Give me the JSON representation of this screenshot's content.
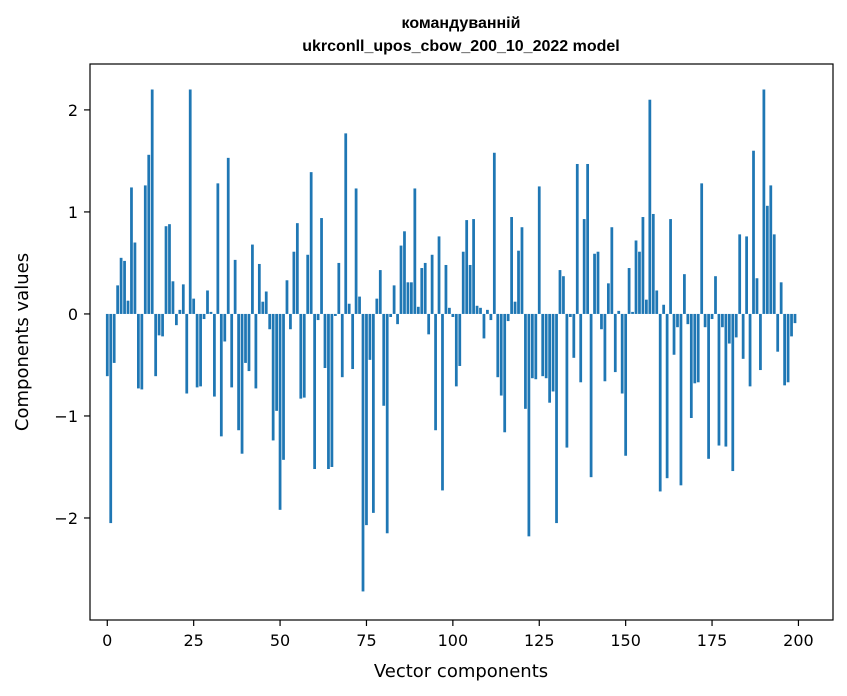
{
  "chart_data": {
    "type": "bar",
    "title": "командуванній",
    "subtitle": "ukrconll_upos_cbow_200_10_2022 model",
    "xlabel": "Vector components",
    "ylabel": "Components values",
    "xlim": [
      -5,
      210
    ],
    "ylim": [
      -3.0,
      2.45
    ],
    "xticks": [
      0,
      25,
      50,
      75,
      100,
      125,
      150,
      175,
      200
    ],
    "xtick_labels": [
      "0",
      "25",
      "50",
      "75",
      "100",
      "125",
      "150",
      "175",
      "200"
    ],
    "yticks": [
      -2,
      -1,
      0,
      1,
      2
    ],
    "ytick_labels": [
      "−2",
      "−1",
      "0",
      "1",
      "2"
    ],
    "grid": false,
    "color": "#1f77b4",
    "x": [
      0,
      1,
      2,
      3,
      4,
      5,
      6,
      7,
      8,
      9,
      10,
      11,
      12,
      13,
      14,
      15,
      16,
      17,
      18,
      19,
      20,
      21,
      22,
      23,
      24,
      25,
      26,
      27,
      28,
      29,
      30,
      31,
      32,
      33,
      34,
      35,
      36,
      37,
      38,
      39,
      40,
      41,
      42,
      43,
      44,
      45,
      46,
      47,
      48,
      49,
      50,
      51,
      52,
      53,
      54,
      55,
      56,
      57,
      58,
      59,
      60,
      61,
      62,
      63,
      64,
      65,
      66,
      67,
      68,
      69,
      70,
      71,
      72,
      73,
      74,
      75,
      76,
      77,
      78,
      79,
      80,
      81,
      82,
      83,
      84,
      85,
      86,
      87,
      88,
      89,
      90,
      91,
      92,
      93,
      94,
      95,
      96,
      97,
      98,
      99,
      100,
      101,
      102,
      103,
      104,
      105,
      106,
      107,
      108,
      109,
      110,
      111,
      112,
      113,
      114,
      115,
      116,
      117,
      118,
      119,
      120,
      121,
      122,
      123,
      124,
      125,
      126,
      127,
      128,
      129,
      130,
      131,
      132,
      133,
      134,
      135,
      136,
      137,
      138,
      139,
      140,
      141,
      142,
      143,
      144,
      145,
      146,
      147,
      148,
      149,
      150,
      151,
      152,
      153,
      154,
      155,
      156,
      157,
      158,
      159,
      160,
      161,
      162,
      163,
      164,
      165,
      166,
      167,
      168,
      169,
      170,
      171,
      172,
      173,
      174,
      175,
      176,
      177,
      178,
      179,
      180,
      181,
      182,
      183,
      184,
      185,
      186,
      187,
      188,
      189,
      190,
      191,
      192,
      193,
      194,
      195,
      196,
      197,
      198,
      199
    ],
    "values": [
      -0.61,
      -2.05,
      -0.48,
      0.28,
      0.55,
      0.52,
      0.13,
      1.24,
      0.7,
      -0.73,
      -0.74,
      1.26,
      1.56,
      2.2,
      -0.61,
      -0.21,
      -0.22,
      0.86,
      0.88,
      0.32,
      -0.11,
      0.04,
      0.29,
      -0.78,
      2.2,
      0.15,
      -0.72,
      -0.71,
      -0.05,
      0.23,
      0.02,
      -0.81,
      1.28,
      -1.2,
      -0.27,
      1.53,
      -0.72,
      0.53,
      -1.14,
      -1.37,
      -0.48,
      -0.56,
      0.68,
      -0.73,
      0.49,
      0.12,
      0.22,
      -0.15,
      -1.24,
      -0.95,
      -1.92,
      -1.43,
      0.33,
      -0.15,
      0.61,
      0.89,
      -0.83,
      -0.82,
      0.58,
      1.39,
      -1.52,
      -0.06,
      0.94,
      -0.53,
      -1.52,
      -1.5,
      -0.02,
      0.5,
      -0.62,
      1.77,
      0.1,
      -0.54,
      1.23,
      0.17,
      -2.72,
      -2.07,
      -0.45,
      -1.95,
      0.15,
      0.43,
      -0.9,
      -2.15,
      -0.03,
      0.28,
      -0.1,
      0.67,
      0.81,
      0.31,
      0.31,
      1.23,
      0.07,
      0.45,
      0.5,
      -0.2,
      0.58,
      -1.14,
      0.76,
      -1.73,
      0.48,
      0.06,
      -0.03,
      -0.71,
      -0.51,
      0.61,
      0.92,
      0.48,
      0.93,
      0.08,
      0.06,
      -0.24,
      0.04,
      -0.06,
      1.58,
      -0.62,
      -0.8,
      -1.16,
      -0.07,
      0.95,
      0.12,
      0.62,
      0.85,
      -0.93,
      -2.18,
      -0.63,
      -0.64,
      1.25,
      -0.61,
      -0.63,
      -0.87,
      -0.76,
      -2.05,
      0.43,
      0.37,
      -1.31,
      -0.03,
      -0.43,
      1.47,
      -0.67,
      0.93,
      1.47,
      -1.6,
      0.59,
      0.61,
      -0.15,
      -0.66,
      0.3,
      0.85,
      -0.57,
      0.03,
      -0.78,
      -1.39,
      0.45,
      0.02,
      0.72,
      0.61,
      0.95,
      0.14,
      2.1,
      0.98,
      0.23,
      -1.74,
      0.09,
      -1.61,
      0.93,
      -0.4,
      -0.13,
      -1.68,
      0.39,
      -0.1,
      -1.02,
      -0.68,
      -0.67,
      1.28,
      -0.13,
      -1.42,
      -0.05,
      0.37,
      -1.29,
      -0.13,
      -1.3,
      -0.29,
      -1.54,
      -0.23,
      0.78,
      -0.44,
      0.76,
      -0.71,
      1.6,
      0.35,
      -0.55,
      2.2,
      1.06,
      1.26,
      0.78,
      -0.37,
      0.31,
      -0.7,
      -0.67,
      -0.22,
      -0.09
    ]
  }
}
